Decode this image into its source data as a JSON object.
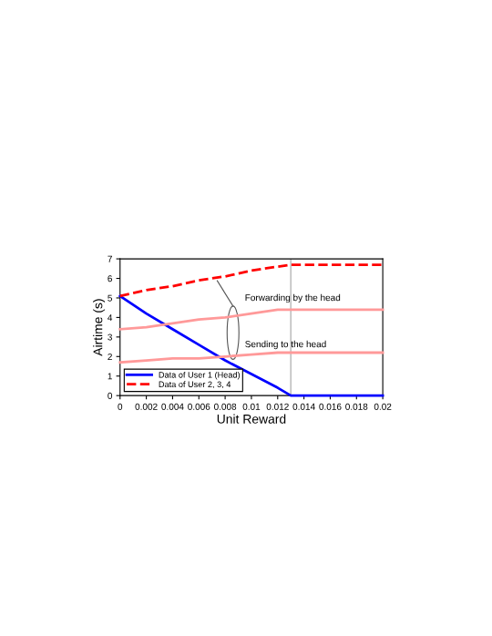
{
  "chart_data": {
    "type": "line",
    "xlabel": "Unit Reward",
    "ylabel": "Airtime (s)",
    "xlim": [
      0,
      0.02
    ],
    "ylim": [
      0,
      7
    ],
    "xticks": [
      0,
      0.002,
      0.004,
      0.006,
      0.008,
      0.01,
      0.012,
      0.014,
      0.016,
      0.018,
      0.02
    ],
    "yticks": [
      0,
      1,
      2,
      3,
      4,
      5,
      6,
      7
    ],
    "x": [
      0,
      0.002,
      0.004,
      0.006,
      0.008,
      0.01,
      0.012,
      0.013,
      0.014,
      0.016,
      0.018,
      0.02
    ],
    "series": [
      {
        "name": "Data of User 1 (Head)",
        "color": "#0000ff",
        "line_style": "solid",
        "values": [
          5.1,
          4.2,
          3.4,
          2.6,
          1.8,
          1.1,
          0.4,
          0,
          0,
          0,
          0,
          0
        ]
      },
      {
        "name": "Data of User 2, 3, 4",
        "color": "#ff0000",
        "line_style": "dashed",
        "values": [
          5.1,
          5.4,
          5.6,
          5.9,
          6.1,
          6.4,
          6.6,
          6.7,
          6.7,
          6.7,
          6.7,
          6.7
        ]
      },
      {
        "color": "#ff9999",
        "line_style": "solid",
        "values": [
          3.4,
          3.5,
          3.7,
          3.9,
          4.0,
          4.2,
          4.4,
          4.4,
          4.4,
          4.4,
          4.4,
          4.4
        ]
      },
      {
        "color": "#ff9999",
        "line_style": "solid",
        "values": [
          1.7,
          1.8,
          1.9,
          1.9,
          2.0,
          2.1,
          2.2,
          2.2,
          2.2,
          2.2,
          2.2,
          2.2
        ]
      }
    ],
    "ref_lines": [
      {
        "axis": "x",
        "value": 0.013,
        "color": "#c0c0c0"
      }
    ],
    "annotations": [
      "Forwarding by the head",
      "Sending to the head"
    ],
    "legend": "bottom left",
    "grid": false,
    "marker": "none"
  }
}
